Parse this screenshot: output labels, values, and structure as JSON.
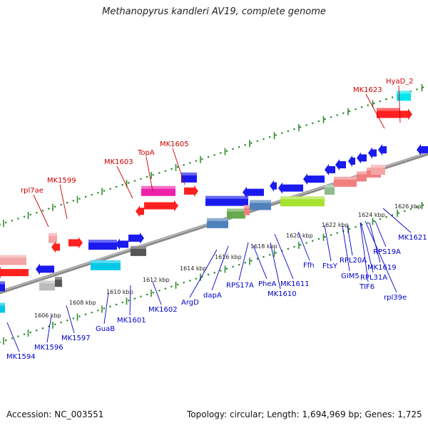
{
  "title": "Methanopyrus kandleri AV19, complete genome",
  "footer": {
    "accession": "Accession: NC_003551",
    "stats": "Topology: circular; Length: 1,694,969 bp; Genes: 1,725"
  },
  "colors": {
    "top_label": "#cc0000",
    "bottom_label": "#0000cc",
    "backbone": "#808080",
    "tick": "#2e8b2e"
  },
  "map": {
    "scale_ticks": [
      "1606 kbp",
      "1608 kbp",
      "1610 kbp",
      "1612 kbp",
      "1614 kbp",
      "1616 kbp",
      "1618 kbp",
      "1620 kbp",
      "1622 kbp",
      "1624 kbp",
      "1626 kbp"
    ],
    "top_labels": [
      "rpl7ae",
      "MK1599",
      "MK1603",
      "TopA",
      "MK1605",
      "MK1623",
      "HyaD_2"
    ],
    "bottom_labels": [
      "MK1594",
      "MK1596",
      "MK1597",
      "GuaB",
      "MK1601",
      "MK1602",
      "ArgD",
      "dapA",
      "RPS17A",
      "PheA",
      "MK1610",
      "MK1611",
      "Ffh",
      "FtsY",
      "GIM5",
      "RPL20A",
      "TIF6",
      "RPL31A",
      "rpl39e",
      "MK1619",
      "RPS19A",
      "MK1621"
    ]
  }
}
